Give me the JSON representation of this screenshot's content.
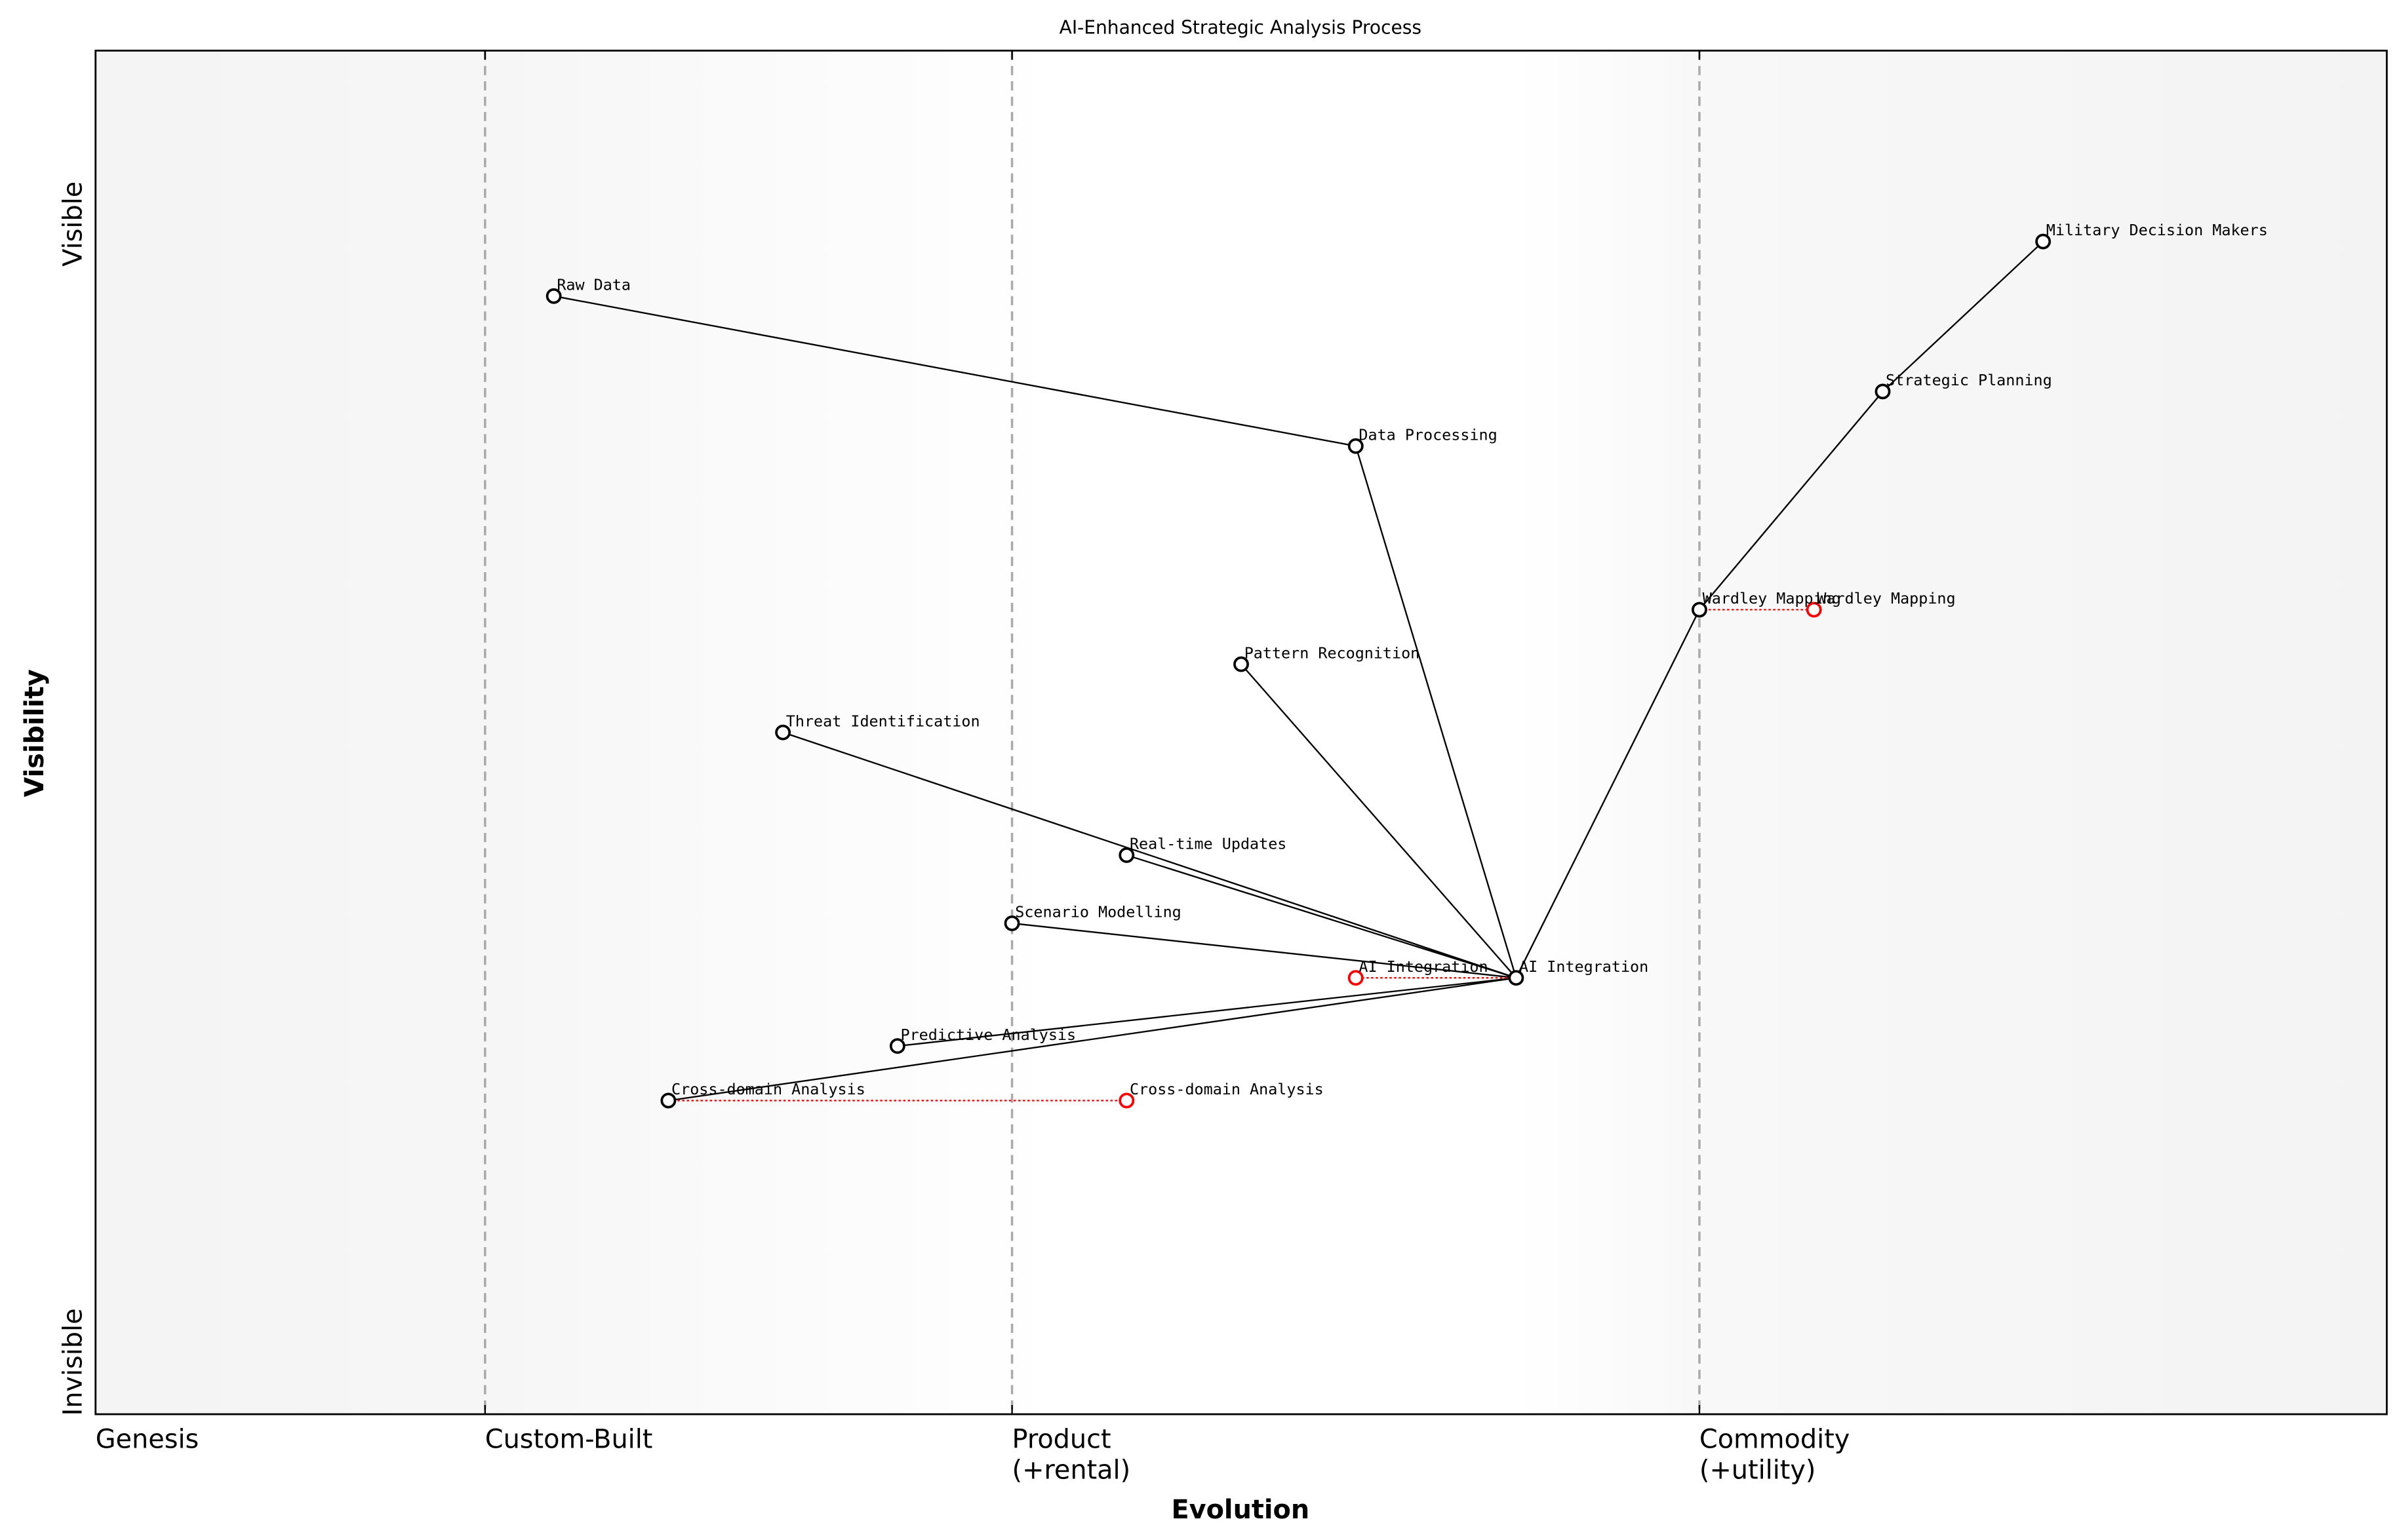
{
  "chart_data": {
    "type": "wardley-map",
    "title": "AI-Enhanced Strategic Analysis Process",
    "xlabel": "Evolution",
    "ylabel": "Visibility",
    "x_stages": [
      {
        "label": "Genesis",
        "x": 0.0
      },
      {
        "label": "Custom-Built",
        "x": 0.17
      },
      {
        "label": "Product\n(+rental)",
        "x": 0.4
      },
      {
        "label": "Commodity\n(+utility)",
        "x": 0.7
      }
    ],
    "y_labels": {
      "top": "Visible",
      "bottom": "Invisible"
    },
    "xlim": [
      0,
      1
    ],
    "ylim": [
      0,
      1
    ],
    "components": [
      {
        "id": "mdm",
        "name": "Military Decision Makers",
        "x": 0.85,
        "y": 0.86
      },
      {
        "id": "sp",
        "name": "Strategic Planning",
        "x": 0.78,
        "y": 0.75
      },
      {
        "id": "wm",
        "name": "Wardley Mapping",
        "x": 0.7,
        "y": 0.59
      },
      {
        "id": "dp",
        "name": "Data Processing",
        "x": 0.55,
        "y": 0.71
      },
      {
        "id": "rd",
        "name": "Raw Data",
        "x": 0.2,
        "y": 0.82
      },
      {
        "id": "pr",
        "name": "Pattern Recognition",
        "x": 0.5,
        "y": 0.55
      },
      {
        "id": "ti",
        "name": "Threat Identification",
        "x": 0.3,
        "y": 0.5
      },
      {
        "id": "ru",
        "name": "Real-time Updates",
        "x": 0.45,
        "y": 0.41
      },
      {
        "id": "sm",
        "name": "Scenario Modelling",
        "x": 0.4,
        "y": 0.36
      },
      {
        "id": "ai",
        "name": "AI Integration",
        "x": 0.62,
        "y": 0.32
      },
      {
        "id": "pa",
        "name": "Predictive Analysis",
        "x": 0.35,
        "y": 0.27
      },
      {
        "id": "cd",
        "name": "Cross-domain Analysis",
        "x": 0.25,
        "y": 0.23
      }
    ],
    "links": [
      [
        "mdm",
        "sp"
      ],
      [
        "sp",
        "wm"
      ],
      [
        "wm",
        "ai"
      ],
      [
        "rd",
        "dp"
      ],
      [
        "dp",
        "ai"
      ],
      [
        "pr",
        "ai"
      ],
      [
        "ti",
        "ai"
      ],
      [
        "ru",
        "ai"
      ],
      [
        "sm",
        "ai"
      ],
      [
        "pa",
        "ai"
      ],
      [
        "cd",
        "ai"
      ]
    ],
    "evolutions": [
      {
        "from": "wm",
        "name": "Wardley Mapping",
        "x": 0.75,
        "y": 0.59
      },
      {
        "from": "ai",
        "name": "AI Integration",
        "x": 0.55,
        "y": 0.32
      },
      {
        "from": "cd",
        "name": "Cross-domain Analysis",
        "x": 0.45,
        "y": 0.23
      }
    ],
    "colors": {
      "component": "#000000",
      "evolution": "#ff0000",
      "stage_line": "#aaaaaa",
      "edge_bg": "#f4f4f4"
    }
  }
}
